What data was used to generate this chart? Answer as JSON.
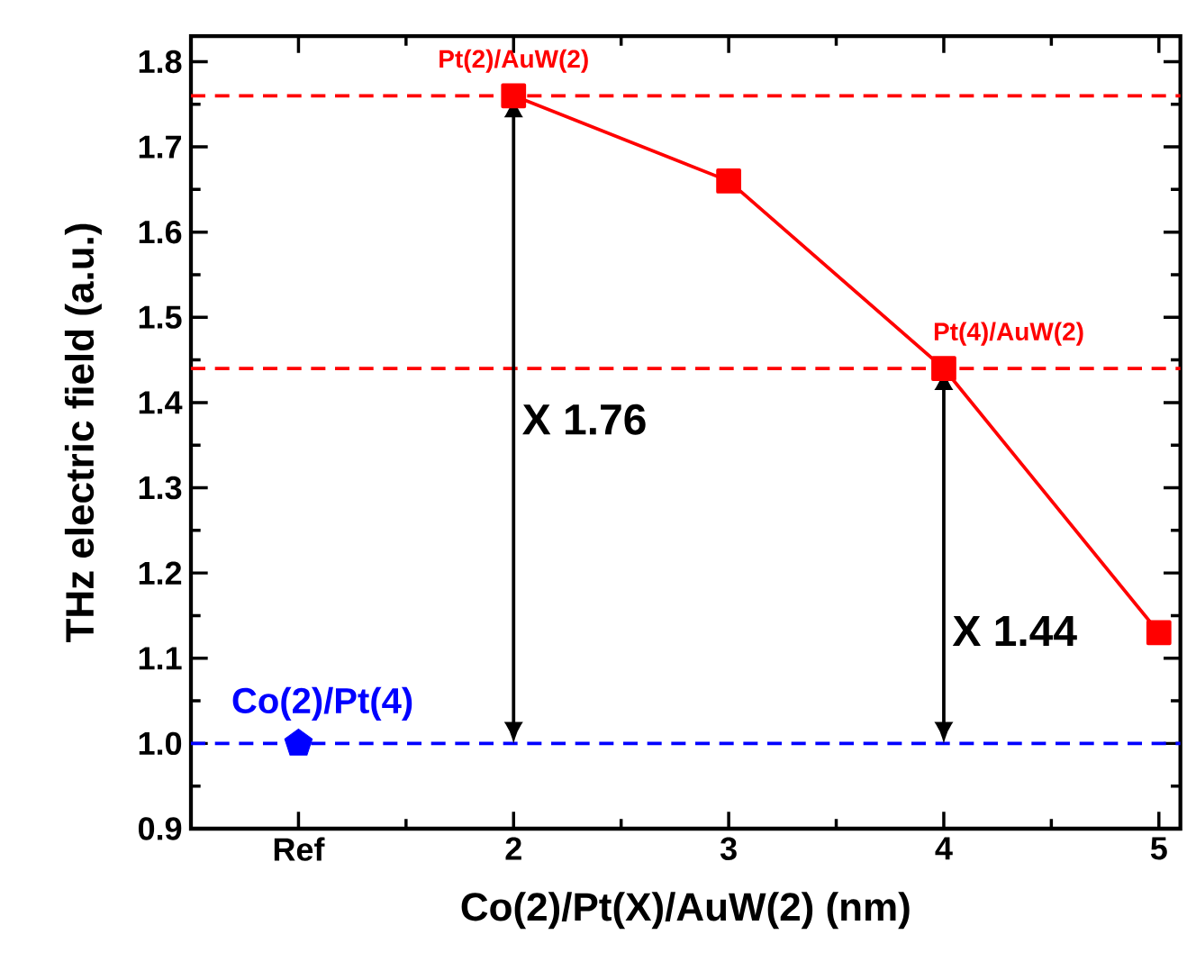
{
  "chart_data": {
    "type": "line",
    "xlabel": "Co(2)/Pt(X)/AuW(2) (nm)",
    "ylabel": "THz electric field (a.u.)",
    "categories": [
      "Ref",
      "2",
      "3",
      "4",
      "5"
    ],
    "series": [
      {
        "color": "#ff0000",
        "marker": "square",
        "line_style": "solid",
        "values": [
          null,
          1.76,
          1.66,
          1.44,
          1.13
        ]
      },
      {
        "type": "scatter",
        "color": "#0000ff",
        "values": [
          1.0,
          null,
          null,
          null,
          null
        ]
      }
    ],
    "ylim": [
      0.9,
      1.83
    ],
    "yticks": [
      {
        "value": 0.9,
        "label": "0.9"
      },
      {
        "value": 1.0,
        "label": "1.0"
      },
      {
        "value": 1.1,
        "label": "1.1"
      },
      {
        "value": 1.2,
        "label": "1.2"
      },
      {
        "value": 1.3,
        "label": "1.3"
      },
      {
        "value": 1.4,
        "label": "1.4"
      },
      {
        "value": 1.5,
        "label": "1.5"
      },
      {
        "value": 1.6,
        "label": "1.6"
      },
      {
        "value": 1.7,
        "label": "1.7"
      },
      {
        "value": 1.8,
        "label": "1.8"
      }
    ],
    "ref_lines": [
      {
        "axis": "y",
        "value": 1.76,
        "color": "#ff0000",
        "line_style": "dashed"
      },
      {
        "axis": "y",
        "value": 1.44,
        "color": "#ff0000",
        "line_style": "dashed"
      },
      {
        "axis": "y",
        "value": 1.0,
        "color": "#0000ff",
        "line_style": "dashed"
      }
    ],
    "annotations": [
      {
        "text": "Pt(2)/AuW(2)",
        "x": "2",
        "y": 1.76
      },
      {
        "text": "Pt(4)/AuW(2)",
        "x": "4",
        "y": 1.44
      },
      {
        "text": "Co(2)/Pt(4)",
        "x": "Ref",
        "y": 1.0
      },
      "X 1.76",
      "X 1.44"
    ],
    "grid": false
  }
}
